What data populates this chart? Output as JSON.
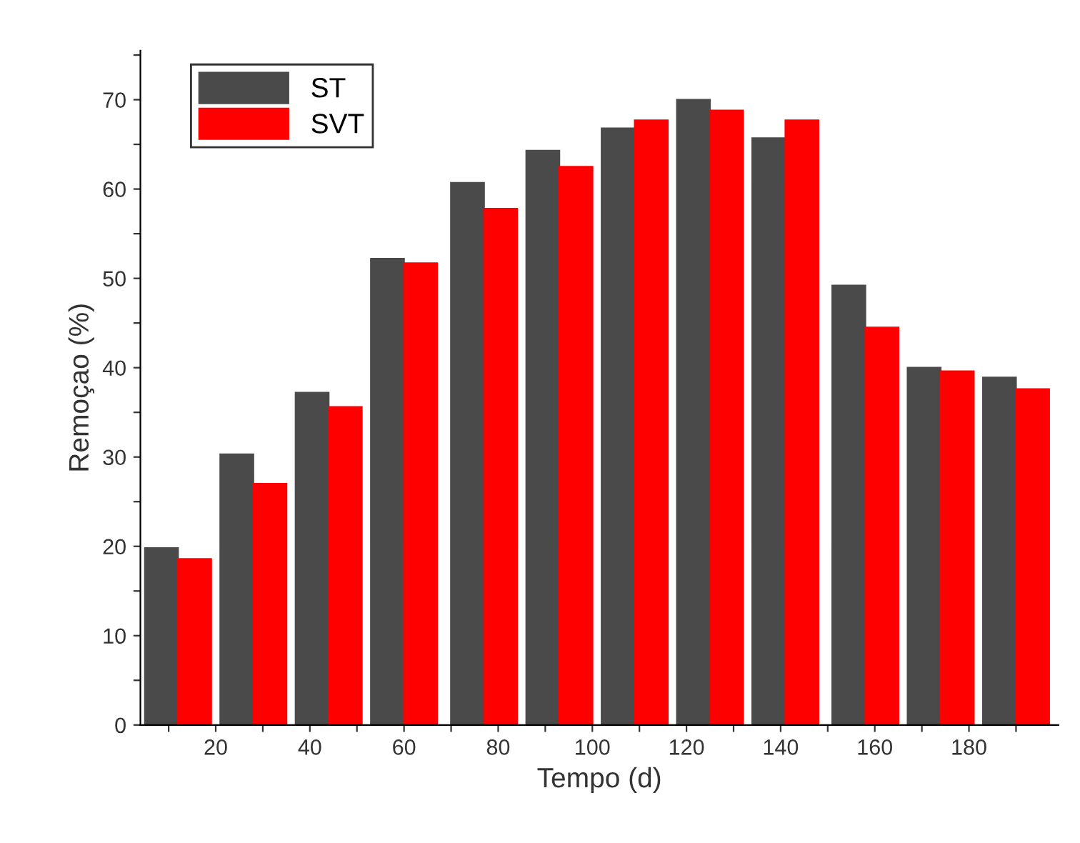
{
  "chart_data": {
    "type": "bar",
    "xlabel": "Tempo (d)",
    "ylabel": "Remoçao (%)",
    "x": [
      12,
      28,
      44,
      60,
      77,
      93,
      109,
      125,
      141,
      158,
      174,
      190
    ],
    "series": [
      {
        "name": "ST",
        "color": "#4a4a4a",
        "values": [
          19.8,
          30.3,
          37.2,
          52.2,
          60.7,
          64.3,
          66.8,
          70.0,
          65.7,
          49.2,
          40.0,
          38.9
        ]
      },
      {
        "name": "SVT",
        "color": "#ff0000",
        "values": [
          18.6,
          27.0,
          35.6,
          51.7,
          57.8,
          62.5,
          67.7,
          68.8,
          67.7,
          44.5,
          39.6,
          37.6
        ]
      }
    ],
    "xlim": [
      4,
      199
    ],
    "xticks": [
      {
        "value": 10,
        "label": null
      },
      20,
      {
        "value": 30,
        "label": null
      },
      40,
      {
        "value": 50,
        "label": null
      },
      60,
      {
        "value": 70,
        "label": null
      },
      80,
      {
        "value": 90,
        "label": null
      },
      100,
      {
        "value": 110,
        "label": null
      },
      120,
      {
        "value": 130,
        "label": null
      },
      140,
      {
        "value": 150,
        "label": null
      },
      160,
      {
        "value": 170,
        "label": null
      },
      180,
      {
        "value": 190,
        "label": null
      }
    ],
    "ylim": [
      0,
      75.5
    ],
    "yticks": [
      0,
      {
        "value": 5,
        "label": null
      },
      10,
      {
        "value": 15,
        "label": null
      },
      20,
      {
        "value": 25,
        "label": null
      },
      30,
      {
        "value": 35,
        "label": null
      },
      40,
      {
        "value": 45,
        "label": null
      },
      50,
      {
        "value": 55,
        "label": null
      },
      60,
      {
        "value": 65,
        "label": null
      },
      70,
      {
        "value": 75,
        "label": null
      }
    ],
    "grid": false,
    "legend": "top left"
  }
}
